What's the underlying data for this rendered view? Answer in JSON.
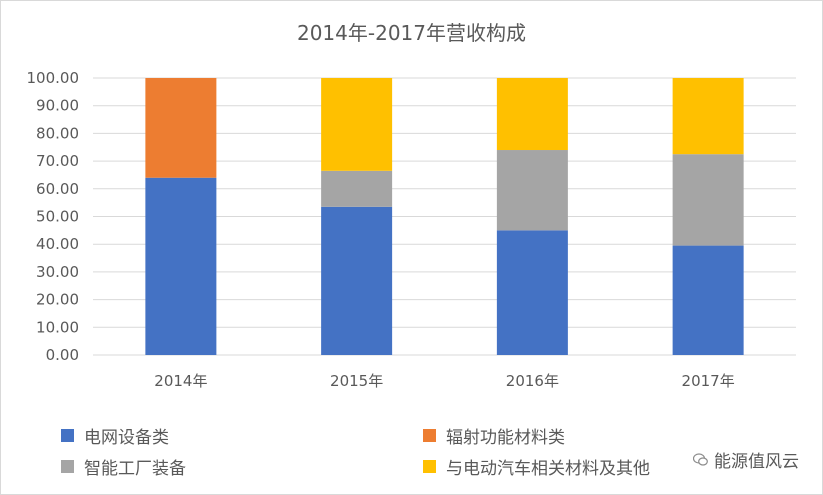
{
  "chart_data": {
    "type": "bar",
    "stacked": true,
    "title": "2014年-2017年营收构成",
    "categories": [
      "2014年",
      "2015年",
      "2016年",
      "2017年"
    ],
    "series": [
      {
        "name": "电网设备类",
        "color": "#4472c4",
        "values": [
          64.0,
          53.5,
          45.0,
          39.5
        ]
      },
      {
        "name": "辐射功能材料类",
        "color": "#ed7d31",
        "values": [
          36.0,
          0,
          0,
          0
        ]
      },
      {
        "name": "智能工厂装备",
        "color": "#a5a5a5",
        "values": [
          0,
          13.0,
          29.0,
          33.0
        ]
      },
      {
        "name": "与电动汽车相关材料及其他",
        "color": "#ffc000",
        "values": [
          0,
          33.5,
          26.0,
          27.5
        ]
      }
    ],
    "ylim": [
      0,
      100
    ],
    "yticks": [
      "0.00",
      "10.00",
      "20.00",
      "30.00",
      "40.00",
      "50.00",
      "60.00",
      "70.00",
      "80.00",
      "90.00",
      "100.00"
    ],
    "grid": true,
    "legend_position": "bottom"
  },
  "watermark": {
    "text": "能源值风云",
    "icon": "wechat-icon"
  }
}
